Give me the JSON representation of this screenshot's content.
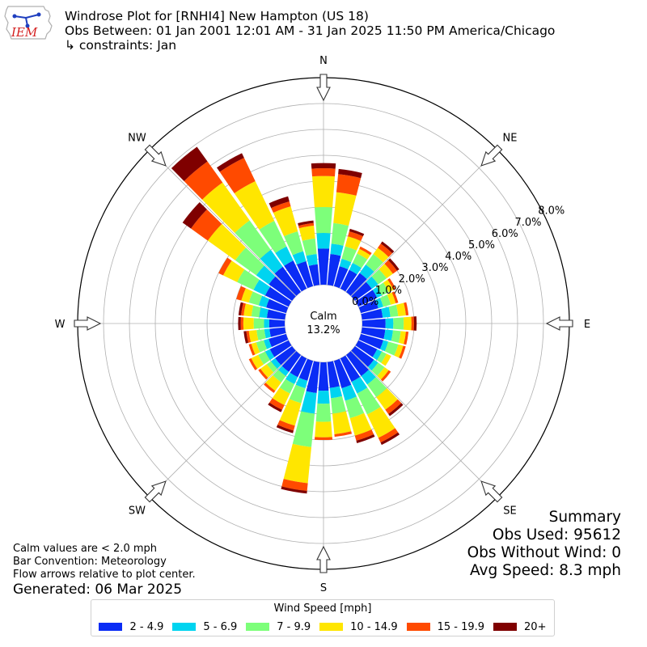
{
  "header": {
    "title": "Windrose Plot for [RNHI4] New Hampton (US 18)",
    "obs_between": "Obs Between: 01 Jan 2001 12:01 AM - 31 Jan 2025 11:50 PM America/Chicago",
    "constraints": "↳ constraints: Jan"
  },
  "logo": {
    "text": "IEM",
    "icon": "iowa-state-logo-icon"
  },
  "notes": {
    "calm_note": "Calm values are < 2.0 mph",
    "bar_convention": "Bar Convention: Meteorology",
    "flow_note": "Flow arrows relative to plot center.",
    "generated": "Generated: 06 Mar 2025"
  },
  "summary": {
    "title": "Summary",
    "obs_used": "Obs Used: 95612",
    "obs_without_wind": "Obs Without Wind: 0",
    "avg_speed": "Avg Speed: 8.3 mph"
  },
  "chart_data": {
    "type": "windrose",
    "calm_label": "Calm",
    "calm_value": "13.2%",
    "radial_ticks": [
      "0.0%",
      "1.0%",
      "2.0%",
      "3.0%",
      "4.0%",
      "5.0%",
      "6.0%",
      "7.0%",
      "8.0%"
    ],
    "rmax": 8.0,
    "directions": [
      "N",
      "NE",
      "E",
      "SE",
      "S",
      "SW",
      "W",
      "NW"
    ],
    "legend_title": "Wind Speed [mph]",
    "bin_labels": [
      "2 - 4.9",
      "5 - 6.9",
      "7 - 9.9",
      "10 - 14.9",
      "15 - 19.9",
      "20+"
    ],
    "bin_colors": [
      "#0a2cf5",
      "#00d4f0",
      "#7dff7a",
      "#ffe600",
      "#ff4a00",
      "#7f0000"
    ],
    "sector_width_deg": 10,
    "sector_angles": [
      0,
      10,
      20,
      30,
      40,
      50,
      60,
      70,
      80,
      90,
      100,
      110,
      120,
      130,
      140,
      150,
      160,
      170,
      180,
      190,
      200,
      210,
      220,
      230,
      240,
      250,
      260,
      270,
      280,
      290,
      300,
      310,
      320,
      330,
      340,
      350
    ],
    "cumulative": [
      [
        1.4,
        2.0,
        3.0,
        4.2,
        4.5,
        4.7
      ],
      [
        1.2,
        1.6,
        2.4,
        3.6,
        4.3,
        4.5
      ],
      [
        0.8,
        1.1,
        1.6,
        2.0,
        2.2,
        2.3
      ],
      [
        0.8,
        1.1,
        1.5,
        1.7,
        1.8,
        1.8
      ],
      [
        0.9,
        1.3,
        1.8,
        2.1,
        2.3,
        2.4
      ],
      [
        0.8,
        1.1,
        1.5,
        1.8,
        2.0,
        2.1
      ],
      [
        0.8,
        1.0,
        1.3,
        1.5,
        1.6,
        1.6
      ],
      [
        0.7,
        0.9,
        1.2,
        1.4,
        1.5,
        1.5
      ],
      [
        0.8,
        1.1,
        1.4,
        1.7,
        1.8,
        1.8
      ],
      [
        0.9,
        1.2,
        1.6,
        1.9,
        2.0,
        2.1
      ],
      [
        0.9,
        1.2,
        1.5,
        1.7,
        1.8,
        1.8
      ],
      [
        0.9,
        1.1,
        1.5,
        1.7,
        1.8,
        1.8
      ],
      [
        0.8,
        1.0,
        1.2,
        1.4,
        1.4,
        1.4
      ],
      [
        0.9,
        1.1,
        1.4,
        1.6,
        1.7,
        1.7
      ],
      [
        1.0,
        1.4,
        2.0,
        2.6,
        2.8,
        2.9
      ],
      [
        1.0,
        1.5,
        2.4,
        3.4,
        3.6,
        3.7
      ],
      [
        1.1,
        1.6,
        2.3,
        3.0,
        3.2,
        3.3
      ],
      [
        1.0,
        1.4,
        2.0,
        2.8,
        2.9,
        2.9
      ],
      [
        1.1,
        1.6,
        2.3,
        2.9,
        3.0,
        3.0
      ],
      [
        1.2,
        2.0,
        3.3,
        4.7,
        5.0,
        5.1
      ],
      [
        0.8,
        1.1,
        1.7,
        2.6,
        2.8,
        2.9
      ],
      [
        0.8,
        1.1,
        1.5,
        2.0,
        2.2,
        2.3
      ],
      [
        0.8,
        1.0,
        1.3,
        1.7,
        1.8,
        1.8
      ],
      [
        0.8,
        1.0,
        1.2,
        1.5,
        1.6,
        1.6
      ],
      [
        0.8,
        1.0,
        1.3,
        1.6,
        1.7,
        1.7
      ],
      [
        0.7,
        0.9,
        1.2,
        1.4,
        1.5,
        1.5
      ],
      [
        0.6,
        0.8,
        1.1,
        1.4,
        1.5,
        1.6
      ],
      [
        0.6,
        0.8,
        1.2,
        1.6,
        1.7,
        1.8
      ],
      [
        0.7,
        1.0,
        1.3,
        1.6,
        1.7,
        1.8
      ],
      [
        0.8,
        1.1,
        1.5,
        1.8,
        2.0,
        2.0
      ],
      [
        1.0,
        1.5,
        2.2,
        2.8,
        3.0,
        3.0
      ],
      [
        1.1,
        1.7,
        2.7,
        4.0,
        4.8,
        5.2
      ],
      [
        1.2,
        2.0,
        3.4,
        5.2,
        6.2,
        6.9
      ],
      [
        1.2,
        1.8,
        2.9,
        4.6,
        5.6,
        5.8
      ],
      [
        1.0,
        1.4,
        2.2,
        3.2,
        3.4,
        3.6
      ],
      [
        0.8,
        1.2,
        1.8,
        2.3,
        2.4,
        2.5
      ]
    ]
  }
}
